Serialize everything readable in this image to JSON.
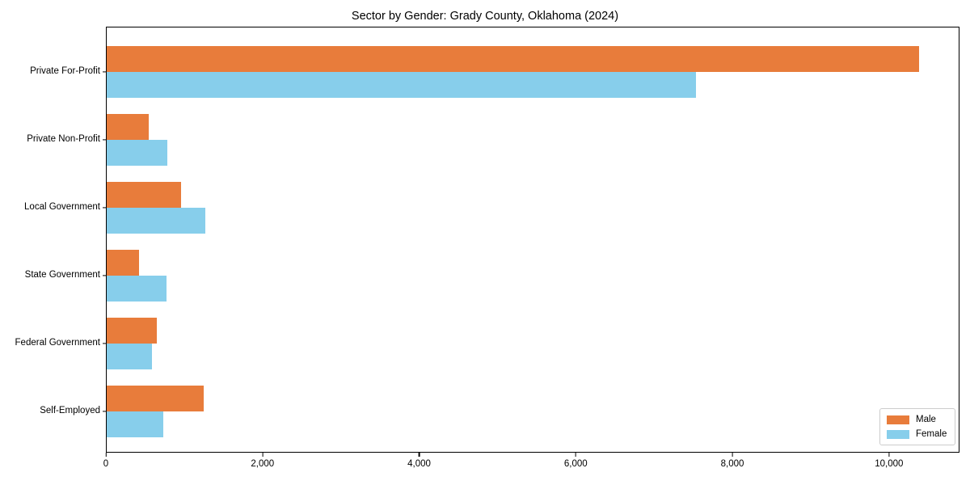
{
  "chart_data": {
    "type": "bar",
    "orientation": "horizontal",
    "title": "Sector by Gender: Grady County, Oklahoma (2024)",
    "categories": [
      "Private For-Profit",
      "Private Non-Profit",
      "Local Government",
      "State Government",
      "Federal Government",
      "Self-Employed"
    ],
    "series": [
      {
        "name": "Male",
        "color": "#e87c3b",
        "values": [
          10370,
          535,
          950,
          410,
          640,
          1240
        ]
      },
      {
        "name": "Female",
        "color": "#87ceeb",
        "values": [
          7520,
          775,
          1260,
          765,
          575,
          720
        ]
      }
    ],
    "xlabel": "",
    "ylabel": "",
    "xlim": [
      0,
      10900
    ],
    "x_ticks": [
      0,
      2000,
      4000,
      6000,
      8000,
      10000
    ],
    "x_tick_labels": [
      "0",
      "2,000",
      "4,000",
      "6,000",
      "8,000",
      "10,000"
    ],
    "grid": false,
    "legend_position": "lower right"
  }
}
